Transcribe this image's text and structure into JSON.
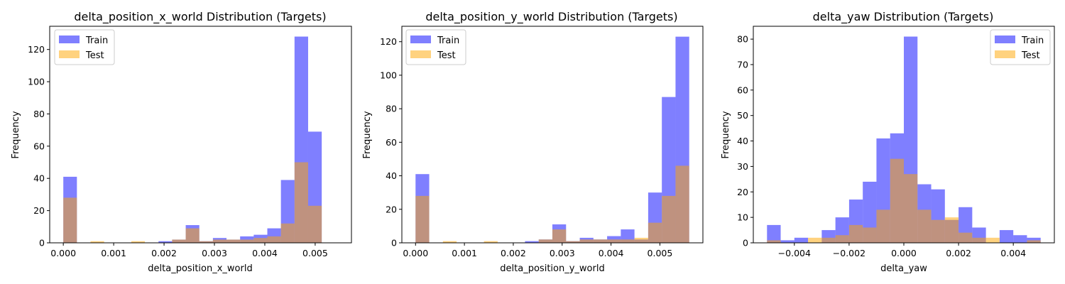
{
  "colors": {
    "train": "#0000ff",
    "test": "#ffa500",
    "train_alpha": 0.5,
    "test_alpha": 0.5
  },
  "chart_data": [
    {
      "type": "histogram",
      "title": "delta_position_x_world Distribution (Targets)",
      "xlabel": "delta_position_x_world",
      "ylabel": "Frequency",
      "xlim": [
        -0.00027,
        0.00572
      ],
      "ylim": [
        0,
        134.4
      ],
      "xticks": [
        0.0,
        0.001,
        0.002,
        0.003,
        0.004,
        0.005
      ],
      "xtick_labels": [
        "0.000",
        "0.001",
        "0.002",
        "0.003",
        "0.004",
        "0.005"
      ],
      "yticks": [
        0,
        20,
        40,
        60,
        80,
        100,
        120
      ],
      "legend": {
        "position": "upper left",
        "entries": [
          "Train",
          "Test"
        ]
      },
      "series": [
        {
          "name": "Train",
          "bin_start": 0.0,
          "bin_width": 0.00027,
          "counts": [
            41,
            0,
            0,
            0,
            0,
            0,
            0,
            1,
            2,
            11,
            1,
            3,
            2,
            4,
            5,
            9,
            39,
            128,
            69
          ]
        },
        {
          "name": "Test",
          "bin_start": 0.0,
          "bin_width": 0.00027,
          "counts": [
            28,
            0,
            1,
            0,
            0,
            1,
            0,
            0,
            2,
            9,
            1,
            2,
            2,
            2,
            3,
            4,
            12,
            50,
            23
          ]
        }
      ]
    },
    {
      "type": "histogram",
      "title": "delta_position_y_world Distribution (Targets)",
      "xlabel": "delta_position_y_world",
      "ylabel": "Frequency",
      "xlim": [
        -0.00028,
        0.00588
      ],
      "ylim": [
        0,
        129.2
      ],
      "xticks": [
        0.0,
        0.001,
        0.002,
        0.003,
        0.004,
        0.005
      ],
      "xtick_labels": [
        "0.000",
        "0.001",
        "0.002",
        "0.003",
        "0.004",
        "0.005"
      ],
      "yticks": [
        0,
        20,
        40,
        60,
        80,
        100,
        120
      ],
      "legend": {
        "position": "upper left",
        "entries": [
          "Train",
          "Test"
        ]
      },
      "series": [
        {
          "name": "Train",
          "bin_start": 0.0,
          "bin_width": 0.00028,
          "counts": [
            41,
            0,
            0,
            0,
            0,
            0,
            0,
            0,
            1,
            2,
            11,
            1,
            3,
            2,
            4,
            8,
            2,
            30,
            87,
            123
          ]
        },
        {
          "name": "Test",
          "bin_start": 0.0,
          "bin_width": 0.00028,
          "counts": [
            28,
            0,
            1,
            0,
            0,
            1,
            0,
            0,
            0,
            2,
            8,
            1,
            2,
            2,
            2,
            2,
            3,
            12,
            28,
            46
          ]
        }
      ]
    },
    {
      "type": "histogram",
      "title": "delta_yaw Distribution (Targets)",
      "xlabel": "delta_yaw",
      "ylabel": "Frequency",
      "xlim": [
        -0.0055,
        0.0055
      ],
      "ylim": [
        0,
        85.05
      ],
      "xticks": [
        -0.004,
        -0.002,
        0.0,
        0.002,
        0.004
      ],
      "xtick_labels": [
        "−0.004",
        "−0.002",
        "0.000",
        "0.002",
        "0.004"
      ],
      "yticks": [
        0,
        10,
        20,
        30,
        40,
        50,
        60,
        70,
        80
      ],
      "legend": {
        "position": "upper right",
        "entries": [
          "Train",
          "Test"
        ]
      },
      "series": [
        {
          "name": "Train",
          "bin_start": -0.005,
          "bin_width": 0.0005,
          "counts": [
            7,
            1,
            2,
            0,
            5,
            10,
            17,
            24,
            41,
            43,
            81,
            23,
            21,
            9,
            14,
            6,
            0,
            5,
            3,
            2
          ]
        },
        {
          "name": "Test",
          "bin_start": -0.005,
          "bin_width": 0.0005,
          "counts": [
            1,
            0,
            0,
            2,
            2,
            3,
            7,
            6,
            13,
            33,
            27,
            13,
            9,
            10,
            4,
            2,
            2,
            0,
            0,
            1
          ]
        }
      ]
    }
  ]
}
